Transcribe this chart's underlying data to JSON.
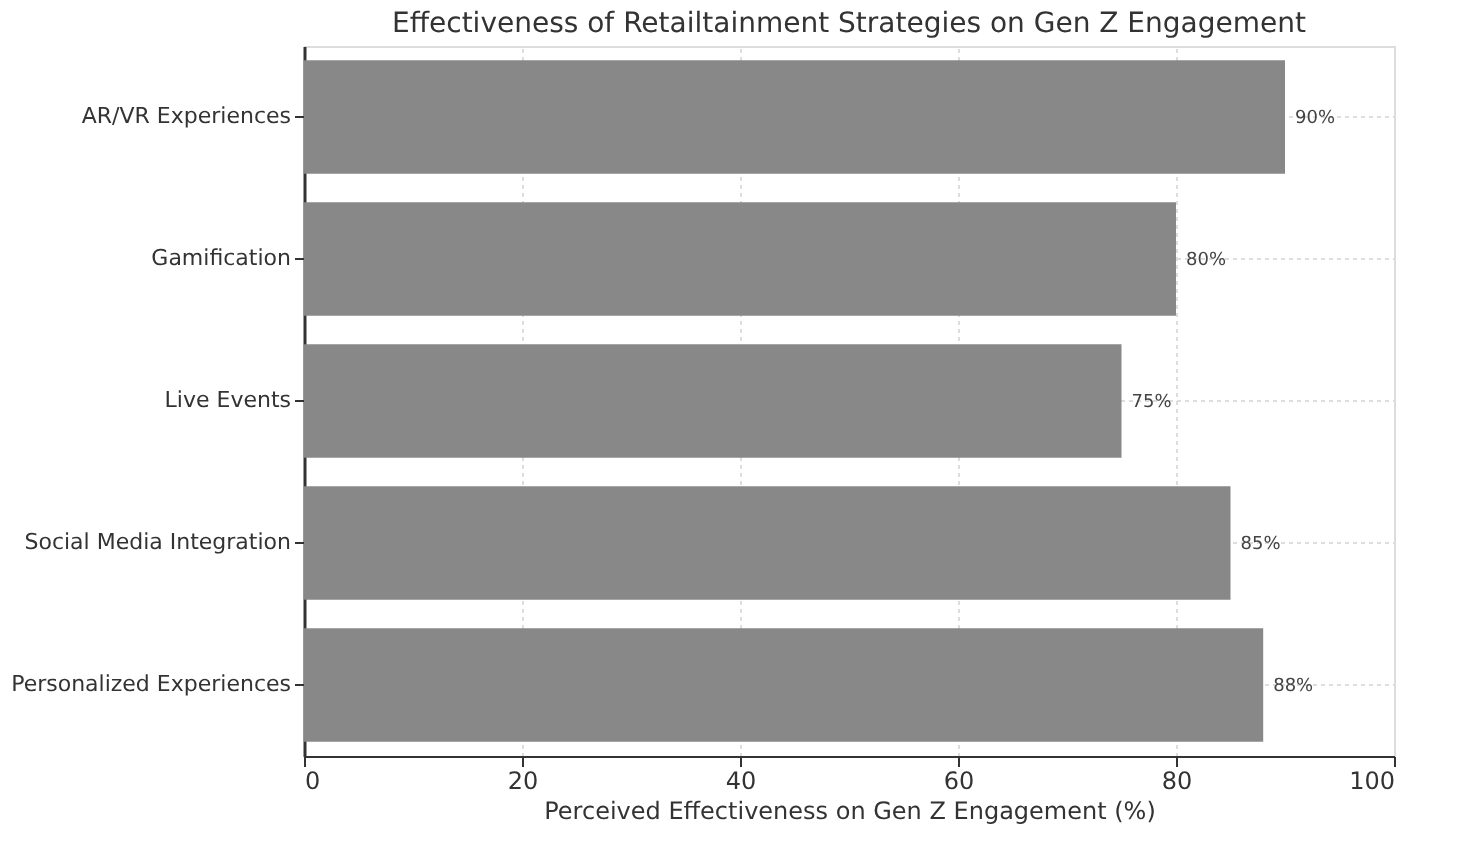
{
  "chart_data": {
    "type": "bar",
    "orientation": "horizontal",
    "title": "Effectiveness of Retailtainment Strategies on Gen Z Engagement",
    "xlabel": "Perceived Effectiveness on Gen Z Engagement (%)",
    "categories": [
      "AR/VR Experiences",
      "Gamification",
      "Live Events",
      "Social Media Integration",
      "Personalized Experiences"
    ],
    "values": [
      90,
      80,
      75,
      85,
      88
    ],
    "value_labels": [
      "90%",
      "80%",
      "75%",
      "85%",
      "88%"
    ],
    "color": "#888888",
    "xlim": [
      0,
      100
    ],
    "xticks": [
      0,
      20,
      40,
      60,
      80,
      100
    ],
    "grid": true
  }
}
